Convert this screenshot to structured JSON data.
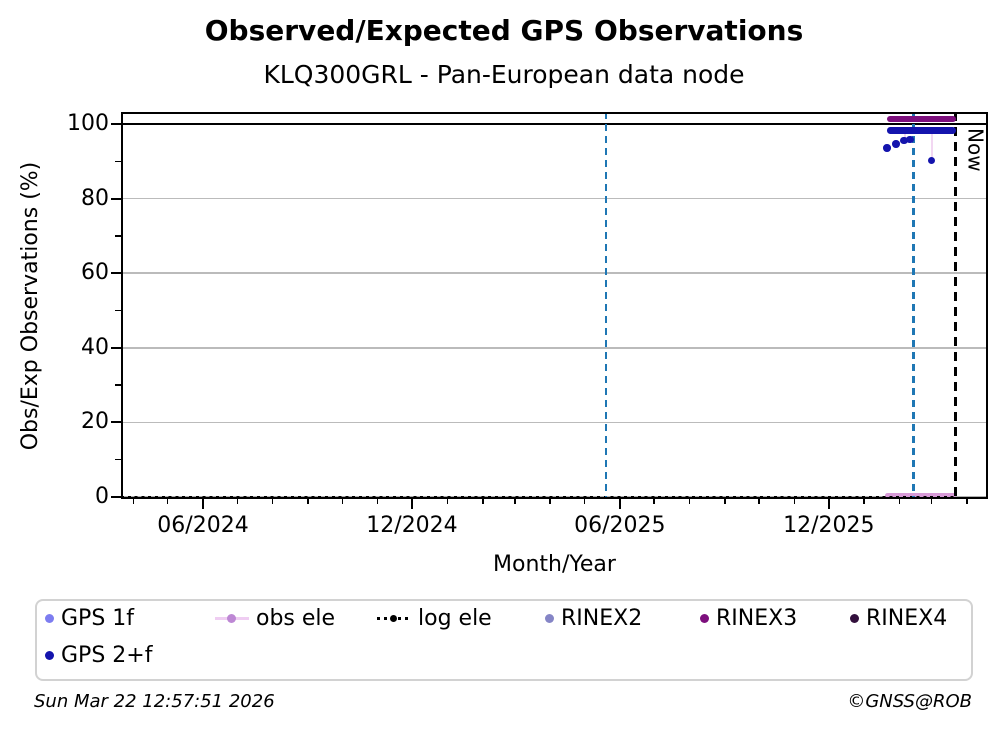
{
  "title": "Observed/Expected GPS Observations",
  "subtitle": "KLQ300GRL - Pan-European data node",
  "y_axis": {
    "label": "Obs/Exp Observations (%)",
    "ticks": [
      "100",
      "80",
      "60",
      "40",
      "20",
      "0"
    ],
    "minor_ticks": [
      10,
      30,
      50,
      70,
      90
    ]
  },
  "x_axis": {
    "label": "Month/Year",
    "ticks": [
      "06/2024",
      "12/2024",
      "06/2025",
      "12/2025"
    ]
  },
  "now_label": "Now",
  "legend": {
    "items": [
      {
        "label": "GPS 1f",
        "marker": "dot",
        "color": "#7d7df0"
      },
      {
        "label": "obs ele",
        "marker": "line-dot",
        "color": "#bd87d4",
        "line_color": "#efcdf2"
      },
      {
        "label": "log ele",
        "marker": "dotted-line",
        "color": "#000000"
      },
      {
        "label": "RINEX2",
        "marker": "dot",
        "color": "#8585c6"
      },
      {
        "label": "RINEX3",
        "marker": "dot",
        "color": "#7d0f7d"
      },
      {
        "label": "RINEX4",
        "marker": "dot",
        "color": "#33103d"
      },
      {
        "label": "GPS 2+f",
        "marker": "dot",
        "color": "#1414ad"
      }
    ]
  },
  "footer": {
    "timestamp": "Sun Mar 22 12:57:51 2026",
    "credit": "©GNSS@ROB"
  },
  "chart_data": {
    "type": "scatter",
    "title": "Observed/Expected GPS Observations",
    "subtitle": "KLQ300GRL - Pan-European data node",
    "xlabel": "Month/Year",
    "ylabel": "Obs/Exp Observations (%)",
    "xlim": [
      "2024-03-20",
      "2026-04-13"
    ],
    "ylim": [
      -0.6,
      103.2
    ],
    "xtick_labels": [
      "06/2024",
      "12/2024",
      "06/2025",
      "12/2025"
    ],
    "ytick_values": [
      0,
      20,
      40,
      60,
      80,
      100
    ],
    "grid": "horizontal gray lines at 20/40/60/80, solid black line at 100",
    "legend_position": "below",
    "series": [
      {
        "name": "GPS 1f",
        "color": "#7d7df0",
        "points": []
      },
      {
        "name": "GPS 2+f",
        "color": "#1414ad",
        "band": {
          "y": 98.3,
          "from": "2026-01-21",
          "to": "2026-03-22"
        },
        "points": [
          {
            "x": "2026-01-21",
            "y": 93.5
          },
          {
            "x": "2026-01-29",
            "y": 94.6
          },
          {
            "x": "2026-02-05",
            "y": 95.6
          },
          {
            "x": "2026-02-10",
            "y": 95.9
          },
          {
            "x": "2026-03-01",
            "y": 90.2
          }
        ]
      },
      {
        "name": "obs ele",
        "color": "#d79ad7",
        "band": {
          "y": 0.4,
          "from": "2026-01-19",
          "to": "2026-03-22"
        },
        "points": []
      },
      {
        "name": "log ele",
        "color": "#000000",
        "line": {
          "y": 0,
          "from": "2024-03-20",
          "to": "2026-03-22",
          "style": "dotted"
        },
        "points": []
      },
      {
        "name": "RINEX2",
        "color": "#8585c6",
        "points": []
      },
      {
        "name": "RINEX3",
        "color": "#7d0f7d",
        "band": {
          "y": 101.4,
          "from": "2026-01-21",
          "to": "2026-03-22"
        },
        "points": []
      },
      {
        "name": "RINEX4",
        "color": "#33103d",
        "points": []
      }
    ],
    "vlines": [
      {
        "x": "2025-05-20",
        "color": "#1f77b4",
        "style": "dashed"
      },
      {
        "x": "2026-02-13",
        "color": "#1f77b4",
        "style": "dashed"
      },
      {
        "x": "2026-03-22",
        "color": "#000000",
        "style": "dashed",
        "label": "Now"
      }
    ],
    "drop_lines": [
      {
        "x": "2026-02-06",
        "y_from": 98.3,
        "y_to": 95.6,
        "color": "#f2d7f2"
      },
      {
        "x": "2026-03-01",
        "y_from": 98.3,
        "y_to": 90.2,
        "color": "#f2d7f2"
      }
    ]
  }
}
